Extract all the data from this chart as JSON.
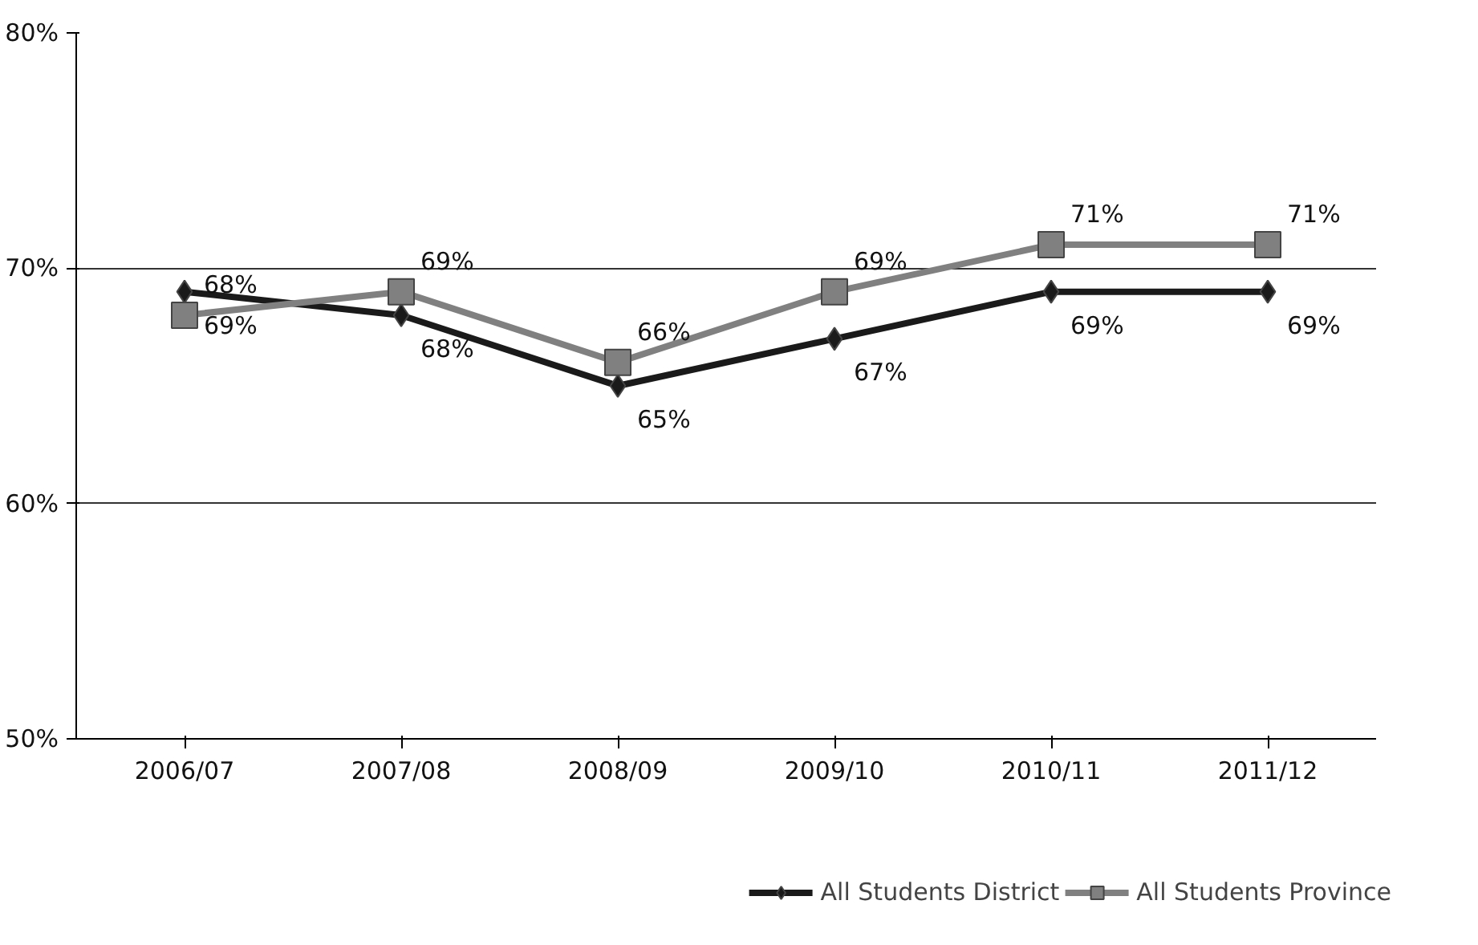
{
  "chart_data": {
    "type": "line",
    "categories": [
      "2006/07",
      "2007/08",
      "2008/09",
      "2009/10",
      "2010/11",
      "2011/12"
    ],
    "series": [
      {
        "name": "All Students District",
        "color": "#1a1a1a",
        "marker": "diamond",
        "values": [
          69,
          68,
          65,
          67,
          69,
          69
        ],
        "value_labels": [
          "69%",
          "68%",
          "65%",
          "67%",
          "69%",
          "69%"
        ]
      },
      {
        "name": "All Students Province",
        "color": "#808080",
        "marker": "square",
        "values": [
          68,
          69,
          66,
          69,
          71,
          71
        ],
        "value_labels": [
          "68%",
          "69%",
          "66%",
          "69%",
          "71%",
          "71%"
        ]
      }
    ],
    "ylim": [
      50,
      80
    ],
    "yticks": [
      {
        "value": 50,
        "label": "50%"
      },
      {
        "value": 60,
        "label": "60%"
      },
      {
        "value": 70,
        "label": "70%"
      },
      {
        "value": 80,
        "label": "80%"
      }
    ],
    "grid": "y",
    "legend": "bottom",
    "line_style": "solid"
  }
}
